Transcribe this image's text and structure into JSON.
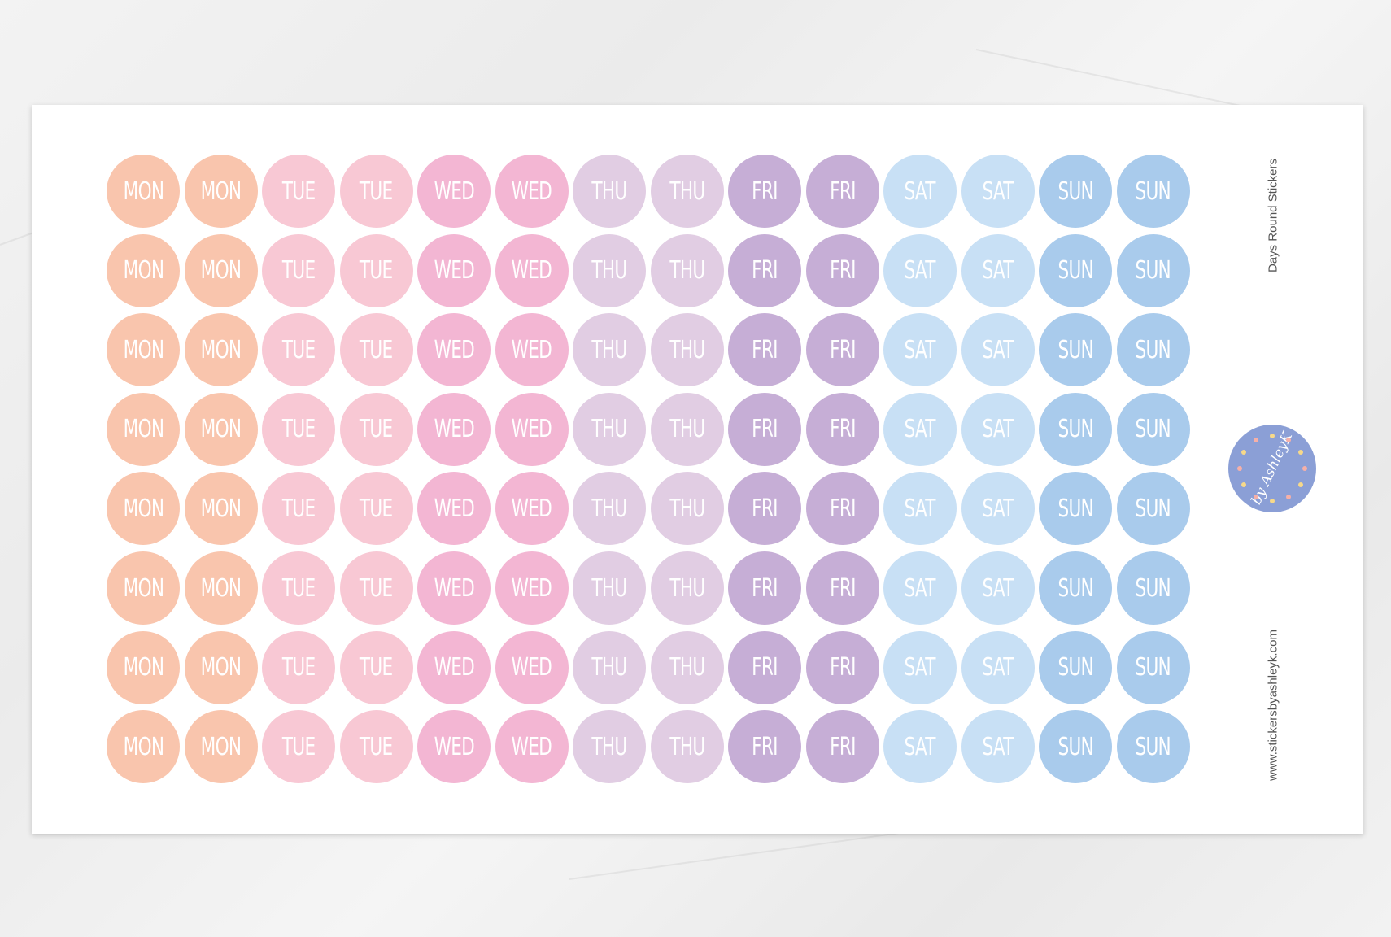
{
  "sheet": {
    "title": "Days Round Stickers",
    "website": "www.stickersbyashleyk.com",
    "logo_text": "by AshleyK",
    "rows": 8,
    "columns": [
      {
        "label": "MON",
        "color": "#f9c5ad"
      },
      {
        "label": "MON",
        "color": "#f9c5ad"
      },
      {
        "label": "TUE",
        "color": "#f8c8d4"
      },
      {
        "label": "TUE",
        "color": "#f8c8d4"
      },
      {
        "label": "WED",
        "color": "#f3b6d3"
      },
      {
        "label": "WED",
        "color": "#f3b6d3"
      },
      {
        "label": "THU",
        "color": "#e1cde3"
      },
      {
        "label": "THU",
        "color": "#e1cde3"
      },
      {
        "label": "FRI",
        "color": "#c6aed6"
      },
      {
        "label": "FRI",
        "color": "#c6aed6"
      },
      {
        "label": "SAT",
        "color": "#c8e0f5"
      },
      {
        "label": "SAT",
        "color": "#c8e0f5"
      },
      {
        "label": "SUN",
        "color": "#a9cbec"
      },
      {
        "label": "SUN",
        "color": "#a9cbec"
      }
    ],
    "logo_color": "#8b9fd6"
  }
}
